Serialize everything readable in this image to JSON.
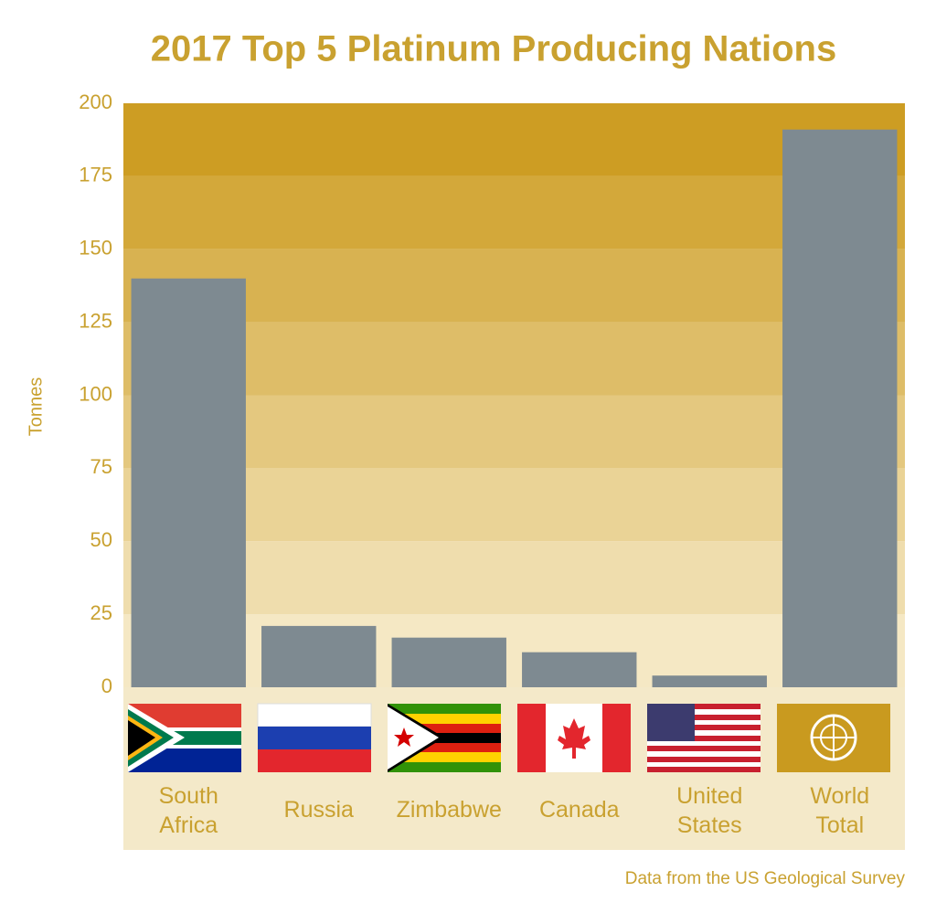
{
  "chart_data": {
    "type": "bar",
    "title": "2017 Top 5 Platinum Producing Nations",
    "y_label": "Tonnes",
    "source": "Data from the US Geological Survey",
    "categories": [
      "South Africa",
      "Russia",
      "Zimbabwe",
      "Canada",
      "United States",
      "World Total"
    ],
    "values": [
      140,
      21,
      17,
      12,
      4,
      191
    ],
    "color": "#7e8a91",
    "ylim": [
      0,
      200
    ],
    "yticks": [
      0,
      25,
      50,
      75,
      100,
      125,
      150,
      175,
      200
    ],
    "grid": true
  }
}
